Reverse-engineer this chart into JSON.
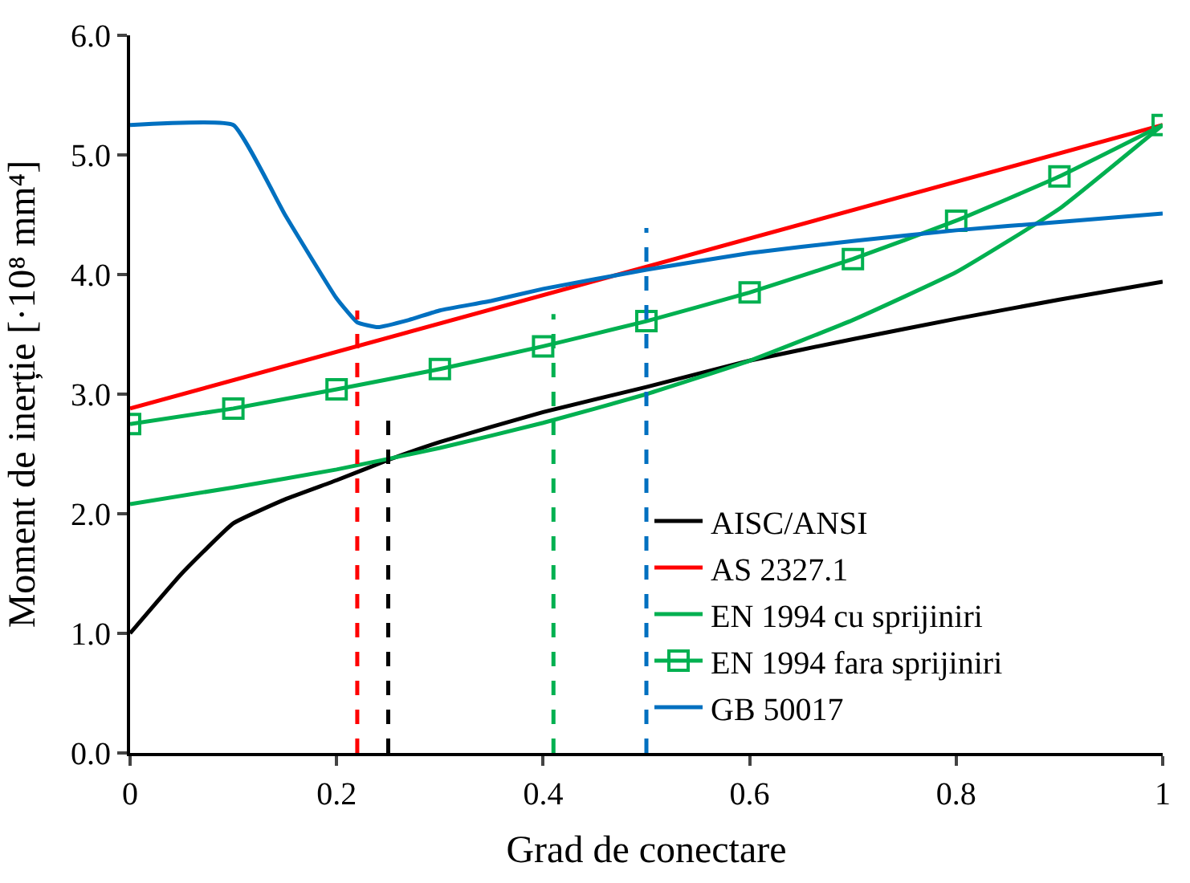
{
  "chart_data": {
    "type": "line",
    "xlabel": "Grad de conectare",
    "ylabel": "Moment de inerție [·10⁸ mm⁴]",
    "xlim": [
      0,
      1
    ],
    "ylim": [
      0,
      6
    ],
    "xticks": [
      0,
      0.2,
      0.4,
      0.6,
      0.8,
      1
    ],
    "yticks": [
      {
        "value": 0,
        "label": "0.0"
      },
      {
        "value": 1,
        "label": "1.0"
      },
      {
        "value": 2,
        "label": "2.0"
      },
      {
        "value": 3,
        "label": "3.0"
      },
      {
        "value": 4,
        "label": "4.0"
      },
      {
        "value": 5,
        "label": "5.0"
      },
      {
        "value": 6,
        "label": "6.0"
      }
    ],
    "legend": "bottom right",
    "marker": "none",
    "line_style": "solid",
    "series": [
      {
        "name": "AISC/ANSI",
        "color": "#000000",
        "x": [
          0,
          0.05,
          0.1,
          0.15,
          0.2,
          0.25,
          0.3,
          0.4,
          0.5,
          0.6,
          0.7,
          0.8,
          0.9,
          1
        ],
        "values": [
          1.0,
          1.5,
          1.92,
          2.12,
          2.28,
          2.45,
          2.6,
          2.85,
          3.06,
          3.28,
          3.46,
          3.63,
          3.79,
          3.94
        ]
      },
      {
        "name": "AS 2327.1",
        "color": "#ff0000",
        "x": [
          0,
          1
        ],
        "values": [
          2.88,
          5.25
        ]
      },
      {
        "name": "EN 1994 cu sprijiniri",
        "color": "#00b050",
        "x": [
          0,
          0.1,
          0.2,
          0.3,
          0.4,
          0.5,
          0.6,
          0.7,
          0.8,
          0.9,
          1
        ],
        "values": [
          2.08,
          2.22,
          2.37,
          2.55,
          2.76,
          3.0,
          3.28,
          3.62,
          4.02,
          4.55,
          5.25
        ]
      },
      {
        "name": "EN 1994 fara sprijiniri",
        "color": "#00b050",
        "marker": "square",
        "x": [
          0,
          0.1,
          0.2,
          0.3,
          0.4,
          0.5,
          0.6,
          0.7,
          0.8,
          0.9,
          1
        ],
        "values": [
          2.75,
          2.88,
          3.04,
          3.21,
          3.4,
          3.61,
          3.85,
          4.13,
          4.45,
          4.82,
          5.25
        ]
      },
      {
        "name": "GB 50017",
        "color": "#0070c0",
        "x": [
          0,
          0.1,
          0.15,
          0.2,
          0.22,
          0.24,
          0.27,
          0.3,
          0.35,
          0.4,
          0.5,
          0.6,
          0.7,
          0.8,
          0.9,
          1
        ],
        "values": [
          5.25,
          5.25,
          4.5,
          3.8,
          3.6,
          3.56,
          3.62,
          3.7,
          3.78,
          3.88,
          4.04,
          4.18,
          4.28,
          4.37,
          4.44,
          4.51
        ]
      },
      {
        "color": "#ff0000",
        "line_style": "dashed",
        "x": [
          0.22,
          0.22
        ],
        "values": [
          0,
          3.7
        ]
      },
      {
        "color": "#000000",
        "line_style": "dashed",
        "x": [
          0.25,
          0.25
        ],
        "values": [
          0,
          2.79
        ]
      },
      {
        "color": "#00b050",
        "line_style": "dashed",
        "x": [
          0.41,
          0.41
        ],
        "values": [
          0,
          3.67
        ]
      },
      {
        "color": "#0070c0",
        "line_style": "dashed",
        "x": [
          0.5,
          0.5
        ],
        "values": [
          0,
          4.39
        ]
      }
    ]
  }
}
